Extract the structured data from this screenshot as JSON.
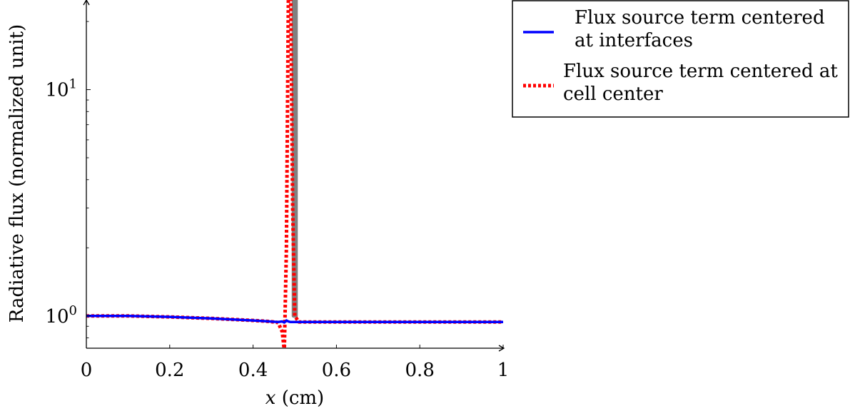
{
  "chart_data": {
    "type": "line",
    "title": "",
    "xlabel": {
      "var": "x",
      "unit": " (cm)"
    },
    "ylabel": "Radiative flux (normalized unit)",
    "xlim": [
      0,
      1
    ],
    "ylim": [
      0.72,
      24
    ],
    "yscale": "log",
    "grid": false,
    "legend_position": "top-right, outside plot",
    "x_ticks": [
      {
        "value": 0,
        "label": "0"
      },
      {
        "value": 0.2,
        "label": "0.2"
      },
      {
        "value": 0.4,
        "label": "0.4"
      },
      {
        "value": 0.6,
        "label": "0.6"
      },
      {
        "value": 0.8,
        "label": "0.8"
      },
      {
        "value": 1,
        "label": "1"
      }
    ],
    "y_ticks": [
      {
        "value": 1,
        "base": "10",
        "exp": "0"
      },
      {
        "value": 10,
        "base": "10",
        "exp": "1"
      }
    ],
    "series": [
      {
        "name": "",
        "color": "#808080",
        "style": "solid",
        "x": [
          0.497,
          0.497,
          0.503,
          0.503
        ],
        "y": [
          30,
          1.0,
          1.0,
          30
        ]
      },
      {
        "name": "Flux source term centered at cell center",
        "legend_lines": [
          "Flux source term centered at",
          "cell center"
        ],
        "color": "#ff0000",
        "style": "dotted",
        "x": [
          0,
          0.1,
          0.2,
          0.3,
          0.4,
          0.44,
          0.46,
          0.47,
          0.475,
          0.48,
          0.485,
          0.49,
          0.495,
          0.5,
          0.51,
          0.55,
          0.6,
          0.8,
          1.0
        ],
        "y": [
          1.0,
          1.0,
          0.99,
          0.975,
          0.955,
          0.945,
          0.935,
          0.85,
          0.7,
          2.0,
          30,
          30,
          3.0,
          1.0,
          0.94,
          0.94,
          0.94,
          0.94,
          0.94
        ]
      },
      {
        "name": "Flux source term centered at interfaces",
        "legend_lines": [
          "Flux source term centered",
          "at interfaces"
        ],
        "color": "#0000ff",
        "style": "solid",
        "x": [
          0,
          0.1,
          0.2,
          0.3,
          0.4,
          0.44,
          0.46,
          0.47,
          0.475,
          0.48,
          0.485,
          0.49,
          0.5,
          0.55,
          0.6,
          0.8,
          1.0
        ],
        "y": [
          1.0,
          1.0,
          0.99,
          0.975,
          0.955,
          0.945,
          0.94,
          0.945,
          0.935,
          0.955,
          0.945,
          0.94,
          0.94,
          0.94,
          0.94,
          0.94,
          0.94
        ]
      }
    ],
    "legend_order": [
      2,
      1
    ]
  }
}
